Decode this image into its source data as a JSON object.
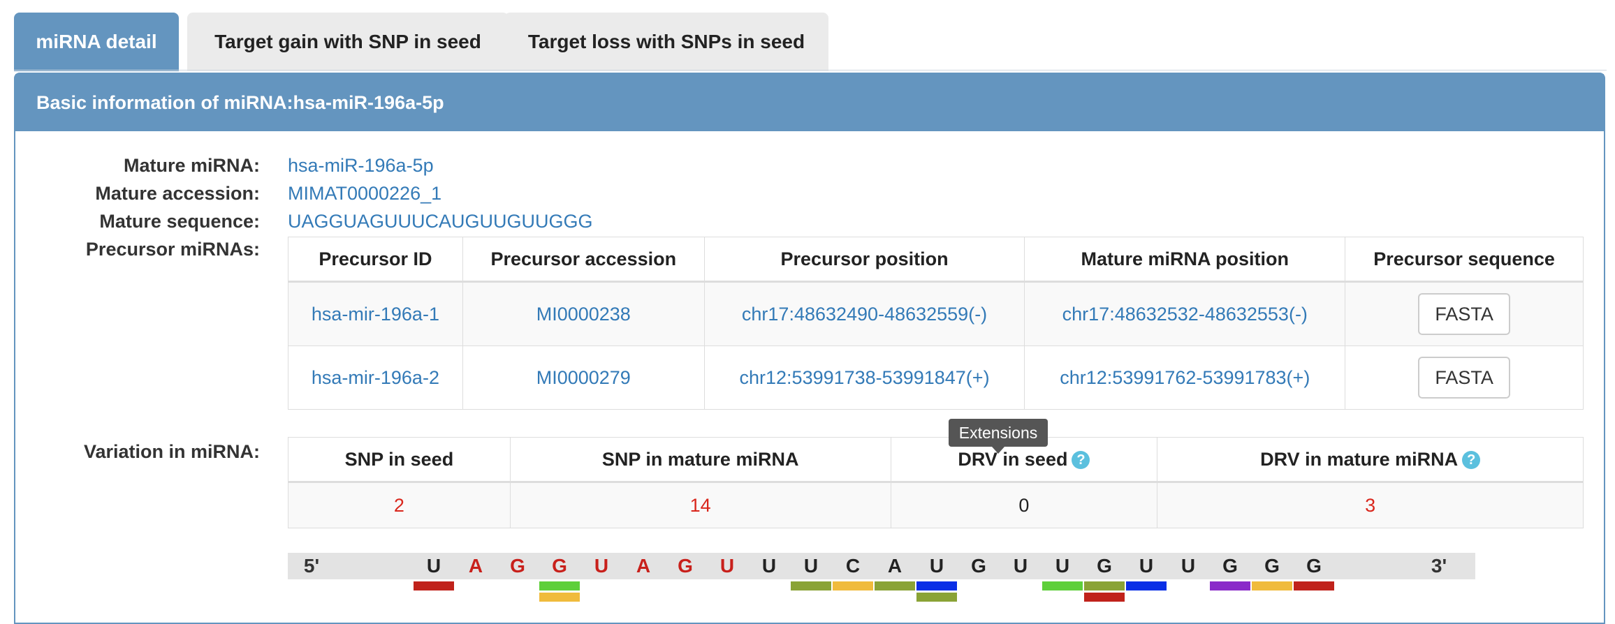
{
  "tabs": [
    {
      "label": "miRNA detail",
      "active": true
    },
    {
      "label": "Target gain with SNP in seed",
      "active": false
    },
    {
      "label": "Target loss with SNPs in seed",
      "active": false
    }
  ],
  "panel": {
    "title": "Basic information of miRNA:hsa-miR-196a-5p"
  },
  "info": {
    "mature_mirna_label": "Mature miRNA:",
    "mature_mirna": "hsa-miR-196a-5p",
    "mature_accession_label": "Mature accession:",
    "mature_accession": "MIMAT0000226_1",
    "mature_sequence_label": "Mature sequence:",
    "mature_sequence": "UAGGUAGUUUCAUGUUGUUGGG",
    "precursor_label": "Precursor miRNAs:",
    "variation_label": "Variation in miRNA:"
  },
  "precursor_table": {
    "headers": [
      "Precursor ID",
      "Precursor accession",
      "Precursor position",
      "Mature miRNA position",
      "Precursor sequence"
    ],
    "rows": [
      {
        "id": "hsa-mir-196a-1",
        "accession": "MI0000238",
        "position": "chr17:48632490-48632559(-)",
        "mature_position": "chr17:48632532-48632553(-)",
        "button": "FASTA"
      },
      {
        "id": "hsa-mir-196a-2",
        "accession": "MI0000279",
        "position": "chr12:53991738-53991847(+)",
        "mature_position": "chr12:53991762-53991783(+)",
        "button": "FASTA"
      }
    ]
  },
  "variation_table": {
    "headers": [
      "SNP in seed",
      "SNP in mature miRNA",
      "DRV in seed",
      "DRV in mature miRNA"
    ],
    "values": [
      "2",
      "14",
      "0",
      "3"
    ]
  },
  "tooltip": "Extensions",
  "sequence_strip": {
    "five_prime": "5'",
    "three_prime": "3'",
    "nucleotides": [
      "U",
      "A",
      "G",
      "G",
      "U",
      "A",
      "G",
      "U",
      "U",
      "U",
      "C",
      "A",
      "U",
      "G",
      "U",
      "U",
      "G",
      "U",
      "U",
      "G",
      "G",
      "G"
    ],
    "seed_color": "#c8201b",
    "normal_color": "#222222"
  },
  "colors": {
    "accent": "#6495bf",
    "link": "#337ab7",
    "count_red": "#d9261c",
    "help": "#5bc0de"
  }
}
